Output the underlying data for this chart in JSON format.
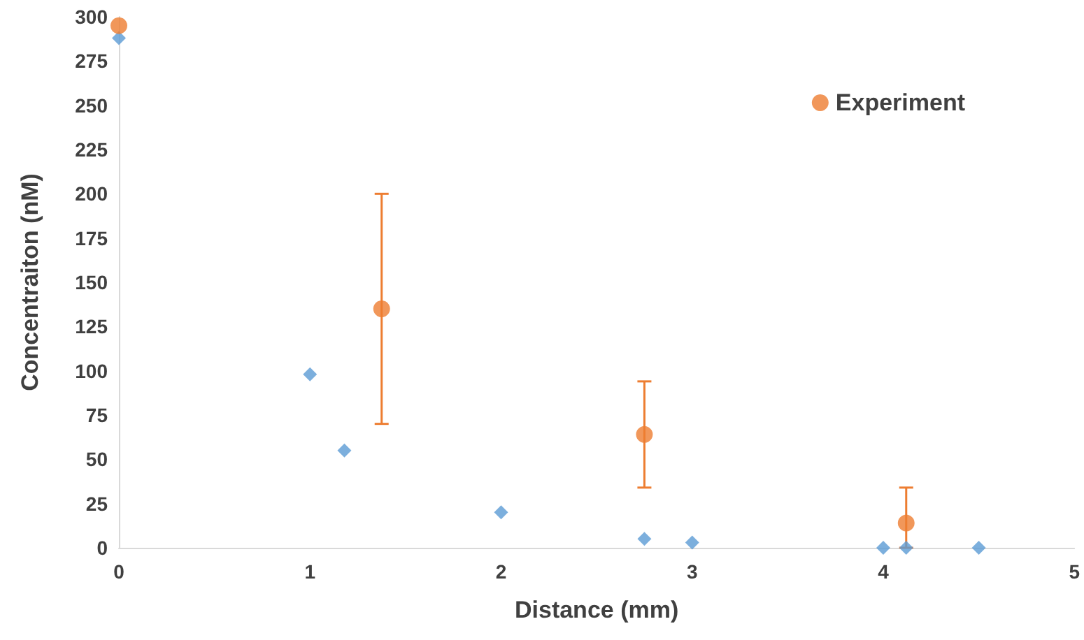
{
  "chart_data": {
    "type": "scatter",
    "xlabel": "Distance (mm)",
    "ylabel": "Concentraiton (nM)",
    "xlim": [
      0,
      5
    ],
    "xticks": [
      0,
      1,
      2,
      3,
      4,
      5
    ],
    "ylim": [
      0,
      300
    ],
    "yticks": [
      0,
      25,
      50,
      75,
      100,
      125,
      150,
      175,
      200,
      225,
      250,
      275,
      300
    ],
    "grid": false,
    "legend": "top right",
    "series": [
      {
        "color": "#5b9bd5",
        "marker": "diamond",
        "x": [
          0,
          1,
          1.18,
          2,
          2.75,
          3,
          4,
          4.12,
          4.5
        ],
        "values": [
          288,
          98,
          55,
          20,
          5,
          3,
          0,
          0,
          0
        ]
      },
      {
        "name": "Experiment",
        "color": "#ed7d31",
        "marker": "circle",
        "x": [
          0,
          1.375,
          2.75,
          4.12
        ],
        "values": [
          295,
          135,
          64,
          14
        ],
        "errors": [
          null,
          [
            70,
            200
          ],
          [
            34,
            94
          ],
          [
            0,
            34
          ]
        ]
      }
    ]
  }
}
